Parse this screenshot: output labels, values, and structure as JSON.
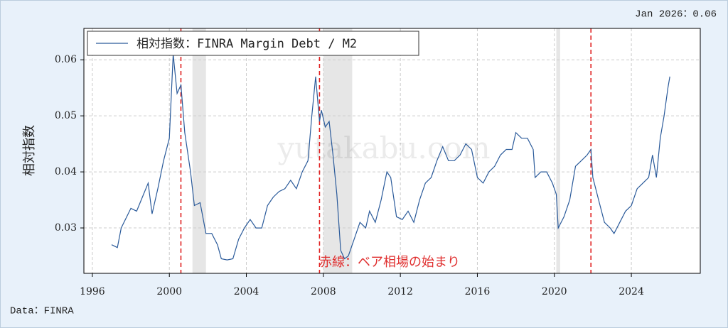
{
  "chart_data": {
    "type": "line",
    "latest_label": "Jan 2026：0.06",
    "source": "Data：FINRA",
    "y_label": "相対指数",
    "annotation": "赤線：ベア相場の始まり",
    "watermark": "yutakabu.com",
    "x": [
      1997.0,
      1997.3,
      1997.5,
      1998.0,
      1998.3,
      1998.6,
      1998.9,
      1999.1,
      1999.4,
      1999.7,
      2000.0,
      2000.2,
      2000.4,
      2000.6,
      2000.8,
      2001.1,
      2001.3,
      2001.6,
      2001.9,
      2002.2,
      2002.5,
      2002.7,
      2003.0,
      2003.3,
      2003.6,
      2003.9,
      2004.2,
      2004.5,
      2004.8,
      2005.1,
      2005.4,
      2005.7,
      2006.0,
      2006.3,
      2006.6,
      2006.9,
      2007.2,
      2007.4,
      2007.6,
      2007.8,
      2007.9,
      2008.1,
      2008.3,
      2008.5,
      2008.7,
      2008.9,
      2009.1,
      2009.3,
      2009.6,
      2009.9,
      2010.2,
      2010.4,
      2010.7,
      2011.0,
      2011.3,
      2011.5,
      2011.8,
      2012.1,
      2012.4,
      2012.7,
      2013.0,
      2013.3,
      2013.6,
      2013.9,
      2014.2,
      2014.5,
      2014.8,
      2015.1,
      2015.4,
      2015.7,
      2016.0,
      2016.3,
      2016.6,
      2016.9,
      2017.2,
      2017.5,
      2017.8,
      2018.0,
      2018.3,
      2018.6,
      2018.9,
      2019.0,
      2019.3,
      2019.6,
      2019.9,
      2020.1,
      2020.2,
      2020.5,
      2020.8,
      2021.1,
      2021.4,
      2021.7,
      2021.9,
      2022.0,
      2022.3,
      2022.6,
      2022.9,
      2023.1,
      2023.4,
      2023.7,
      2024.0,
      2024.3,
      2024.6,
      2024.9,
      2025.1,
      2025.3,
      2025.5,
      2025.7,
      2025.9,
      2026.0
    ],
    "series": [
      {
        "name": "相対指数：FINRA Margin Debt / M2",
        "color": "#2a5a9a",
        "values": [
          0.027,
          0.0265,
          0.03,
          0.0335,
          0.033,
          0.0355,
          0.038,
          0.0325,
          0.037,
          0.042,
          0.046,
          0.061,
          0.054,
          0.0555,
          0.047,
          0.04,
          0.034,
          0.0345,
          0.029,
          0.029,
          0.027,
          0.0245,
          0.0243,
          0.0245,
          0.028,
          0.03,
          0.0315,
          0.03,
          0.03,
          0.034,
          0.0355,
          0.0365,
          0.037,
          0.0385,
          0.037,
          0.04,
          0.042,
          0.05,
          0.057,
          0.049,
          0.051,
          0.048,
          0.049,
          0.043,
          0.036,
          0.026,
          0.0245,
          0.025,
          0.028,
          0.031,
          0.03,
          0.033,
          0.031,
          0.035,
          0.04,
          0.039,
          0.032,
          0.0315,
          0.033,
          0.031,
          0.035,
          0.038,
          0.039,
          0.042,
          0.0445,
          0.042,
          0.042,
          0.043,
          0.045,
          0.044,
          0.039,
          0.038,
          0.04,
          0.041,
          0.043,
          0.044,
          0.044,
          0.047,
          0.046,
          0.046,
          0.044,
          0.039,
          0.04,
          0.04,
          0.038,
          0.036,
          0.03,
          0.032,
          0.035,
          0.041,
          0.042,
          0.043,
          0.044,
          0.039,
          0.035,
          0.031,
          0.03,
          0.029,
          0.031,
          0.033,
          0.034,
          0.037,
          0.038,
          0.039,
          0.043,
          0.039,
          0.046,
          0.05,
          0.055,
          0.057
        ]
      }
    ],
    "bear_market_starts": [
      2000.6,
      2007.8,
      2021.9
    ],
    "recessions": [
      [
        2001.2,
        2001.9
      ],
      [
        2008.0,
        2009.5
      ],
      [
        2020.1,
        2020.3
      ]
    ],
    "xlim": [
      1995.56,
      2027.58
    ],
    "ylim": [
      0.0219,
      0.0656
    ],
    "xticks": [
      1996,
      2000,
      2004,
      2008,
      2012,
      2016,
      2020,
      2024
    ],
    "yticks": [
      0.03,
      0.04,
      0.05,
      0.06
    ],
    "grid": true
  }
}
